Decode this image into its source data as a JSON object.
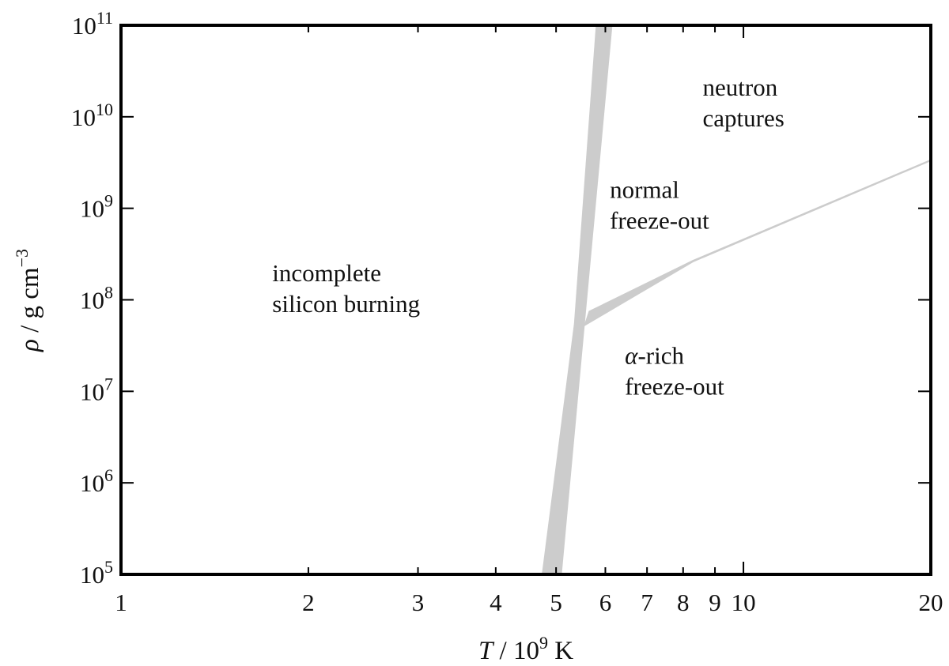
{
  "chart_data": {
    "type": "area",
    "title": "",
    "xlabel": "T / 10^9 K",
    "ylabel": "ρ / g cm^−3",
    "x_scale": "log",
    "y_scale": "log",
    "xlim": [
      1,
      20
    ],
    "ylim": [
      100000.0,
      100000000000.0
    ],
    "grid": false,
    "legend": "none",
    "x_ticks": [
      {
        "value": 1,
        "label": "1"
      },
      {
        "value": 2,
        "label": "2"
      },
      {
        "value": 3,
        "label": "3"
      },
      {
        "value": 4,
        "label": "4"
      },
      {
        "value": 5,
        "label": "5"
      },
      {
        "value": 6,
        "label": "6"
      },
      {
        "value": 7,
        "label": "7"
      },
      {
        "value": 8,
        "label": "8"
      },
      {
        "value": 9,
        "label": "9"
      },
      {
        "value": 10,
        "label": "10"
      },
      {
        "value": 20,
        "label": "20"
      }
    ],
    "y_ticks": [
      {
        "value": 100000.0,
        "base": "10",
        "exp": "5"
      },
      {
        "value": 1000000.0,
        "base": "10",
        "exp": "6"
      },
      {
        "value": 10000000.0,
        "base": "10",
        "exp": "7"
      },
      {
        "value": 100000000.0,
        "base": "10",
        "exp": "8"
      },
      {
        "value": 1000000000.0,
        "base": "10",
        "exp": "9"
      },
      {
        "value": 10000000000.0,
        "base": "10",
        "exp": "10"
      },
      {
        "value": 100000000000.0,
        "base": "10",
        "exp": "11"
      }
    ],
    "bands": [
      {
        "name": "silicon-burning boundary",
        "color": "#cccccc",
        "points": [
          [
            4.75,
            100000.0
          ],
          [
            5.1,
            100000.0
          ],
          [
            5.55,
            52000000.0
          ],
          [
            6.15,
            100000000000.0
          ],
          [
            5.8,
            100000000000.0
          ],
          [
            5.35,
            55000000.0
          ]
        ]
      },
      {
        "name": "alpha-rich boundary",
        "color": "#cccccc",
        "points": [
          [
            5.55,
            52000000.0
          ],
          [
            5.65,
            75000000.0
          ],
          [
            8.3,
            270000000.0
          ],
          [
            20,
            3400000000.0
          ],
          [
            20,
            3300000000.0
          ],
          [
            8.3,
            260000000.0
          ]
        ]
      }
    ],
    "regions": [
      {
        "lines": [
          "incomplete",
          "silicon burning"
        ],
        "x": 1.75,
        "y": 160000000.0
      },
      {
        "lines": [
          "normal",
          "freeze-out"
        ],
        "x": 6.1,
        "y": 1300000000.0
      },
      {
        "lines": [
          "neutron",
          "captures"
        ],
        "x": 8.6,
        "y": 17000000000.0
      },
      {
        "greek": "α",
        "lines": [
          "-rich",
          "freeze-out"
        ],
        "x": 6.45,
        "y": 20000000.0
      }
    ],
    "colors": {
      "axis": "#000000",
      "band": "#cccccc"
    }
  }
}
